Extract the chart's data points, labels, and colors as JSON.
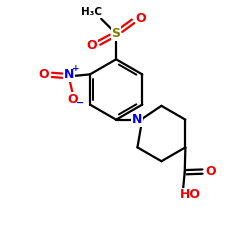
{
  "bg": "#ffffff",
  "lw": 1.6,
  "fs": 8.5,
  "colors": {
    "C": "#000000",
    "S": "#808000",
    "N": "#0000ee",
    "O": "#ee0000",
    "H": "#000000"
  },
  "xlim": [
    0.0,
    5.5
  ],
  "ylim": [
    -3.8,
    3.2
  ],
  "figsize": [
    2.5,
    2.5
  ],
  "dpi": 100
}
